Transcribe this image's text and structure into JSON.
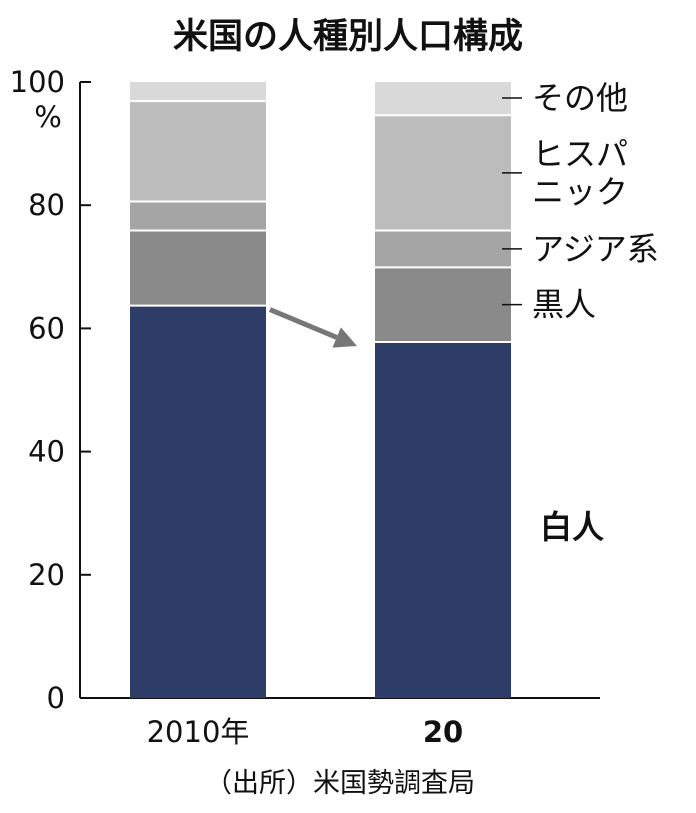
{
  "chart_data": {
    "type": "bar",
    "stacked": true,
    "title": "米国の人種別人口構成",
    "ylabel": "%",
    "ylim": [
      0,
      100
    ],
    "yticks": [
      "0",
      "20",
      "40",
      "60",
      "80",
      "100"
    ],
    "categories": [
      "2010年",
      "20"
    ],
    "series": [
      {
        "name": "白人",
        "values": [
          63.7,
          57.8
        ],
        "color": "#2e3d68"
      },
      {
        "name": "黒人",
        "values": [
          12.2,
          12.1
        ],
        "color": "#8a8a8a"
      },
      {
        "name": "アジア系",
        "values": [
          4.7,
          6.0
        ],
        "color": "#a5a5a5"
      },
      {
        "name": "ヒスパニック",
        "values": [
          16.3,
          18.7
        ],
        "color": "#bcbcbc"
      },
      {
        "name": "その他",
        "values": [
          3.1,
          5.4
        ],
        "color": "#d9d9d9"
      }
    ],
    "legend_lines": {
      "白人": [
        "白人"
      ],
      "黒人": [
        "黒人"
      ],
      "アジア系": [
        "アジア系"
      ],
      "ヒスパニック": [
        "ヒスパ",
        "ニック"
      ],
      "その他": [
        "その他"
      ]
    },
    "arrow": {
      "from_category": "2010年",
      "to_category": "20",
      "series": "白人"
    },
    "grid": false,
    "legend": "right"
  },
  "source": "（出所）米国勢調査局"
}
